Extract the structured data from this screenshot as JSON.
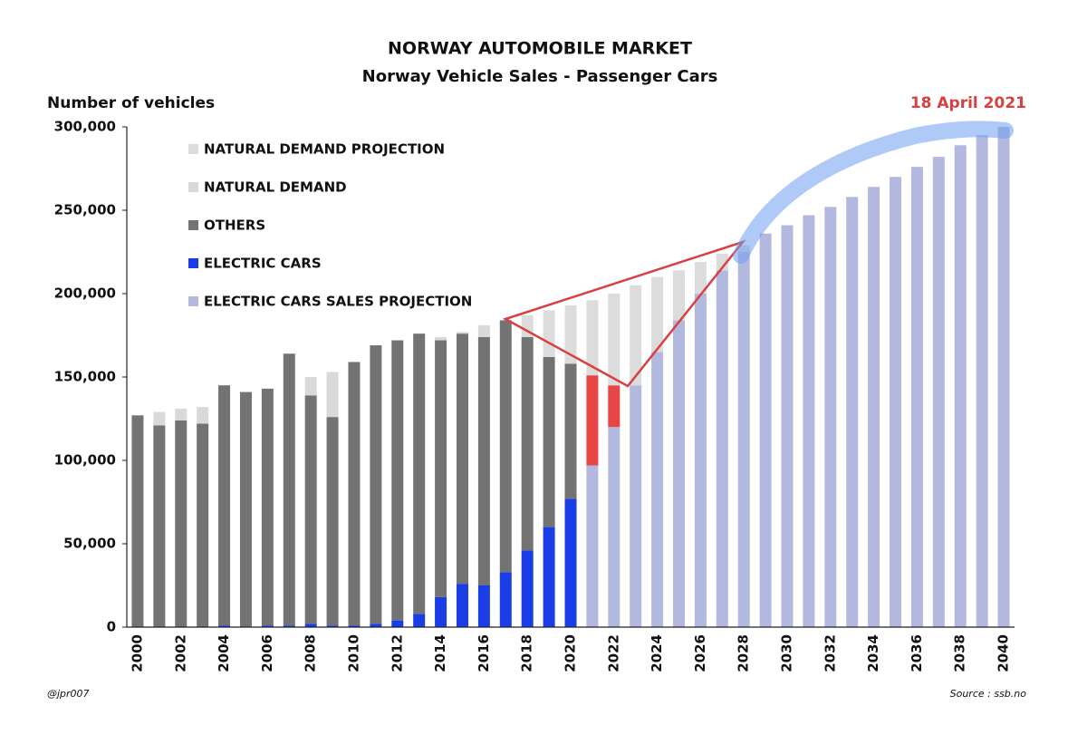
{
  "chart_data": {
    "type": "stacked_bar",
    "title": "NORWAY AUTOMOBILE MARKET",
    "subtitle": "Norway Vehicle Sales - Passenger Cars",
    "y_label": "Number of vehicles",
    "date_note": "18 April 2021",
    "author": "@jpr007",
    "source": "Source : ssb.no",
    "categories": [
      "2000",
      null,
      "2002",
      null,
      "2004",
      null,
      "2006",
      null,
      "2008",
      null,
      "2010",
      null,
      "2012",
      null,
      "2014",
      null,
      "2016",
      null,
      "2018",
      null,
      "2020",
      null,
      "2022",
      null,
      "2024",
      null,
      "2026",
      null,
      "2028",
      null,
      "2030",
      null,
      "2032",
      null,
      "2034",
      null,
      "2036",
      null,
      "2038",
      null,
      "2040"
    ],
    "ylim": [
      0,
      300000
    ],
    "yticks": [
      0,
      {
        "value": 50000,
        "label": "50,000"
      },
      {
        "value": 100000,
        "label": "100,000"
      },
      {
        "value": 150000,
        "label": "150,000"
      },
      {
        "value": 200000,
        "label": "200,000"
      },
      {
        "value": 250000,
        "label": "250,000"
      },
      {
        "value": 300000,
        "label": "300,000"
      }
    ],
    "series": [
      {
        "name": "ELECTRIC CARS",
        "color": "#1a3de8",
        "values": [
          0,
          0,
          0,
          0,
          1000,
          0,
          1000,
          1000,
          2000,
          1000,
          1000,
          2000,
          4000,
          8000,
          18000,
          26000,
          25000,
          33000,
          46000,
          60000,
          77000,
          0,
          0,
          0,
          0,
          0,
          0,
          0,
          0,
          0,
          0,
          0,
          0,
          0,
          0,
          0,
          0,
          0,
          0,
          0,
          0
        ]
      },
      {
        "name": "OTHERS",
        "color": "#737373",
        "values": [
          127000,
          121000,
          124000,
          122000,
          144000,
          141000,
          142000,
          163000,
          137000,
          125000,
          158000,
          167000,
          168000,
          168000,
          154000,
          150000,
          149000,
          151000,
          128000,
          102000,
          81000,
          0,
          0,
          0,
          0,
          0,
          0,
          0,
          0,
          0,
          0,
          0,
          0,
          0,
          0,
          0,
          0,
          0,
          0,
          0,
          0
        ]
      },
      {
        "name": "ELECTRIC CARS SALES PROJECTION",
        "color": "#b3b8de",
        "values": [
          0,
          0,
          0,
          0,
          0,
          0,
          0,
          0,
          0,
          0,
          0,
          0,
          0,
          0,
          0,
          0,
          0,
          0,
          0,
          0,
          0,
          97000,
          120000,
          145000,
          165000,
          184000,
          200000,
          214000,
          225000,
          236000,
          241000,
          247000,
          252000,
          258000,
          264000,
          270000,
          276000,
          282000,
          289000,
          295000,
          300000
        ]
      },
      {
        "color": "#e84545",
        "values": [
          0,
          0,
          0,
          0,
          0,
          0,
          0,
          0,
          0,
          0,
          0,
          0,
          0,
          0,
          0,
          0,
          0,
          0,
          0,
          0,
          0,
          54000,
          25000,
          0,
          0,
          0,
          0,
          0,
          0,
          0,
          0,
          0,
          0,
          0,
          0,
          0,
          0,
          0,
          0,
          0,
          0
        ]
      },
      {
        "name": "NATURAL DEMAND",
        "color": "#d9d9d9",
        "values": [
          0,
          8000,
          7000,
          10000,
          0,
          0,
          0,
          0,
          11000,
          27000,
          0,
          0,
          0,
          0,
          2000,
          1000,
          7000,
          0,
          0,
          0,
          0,
          0,
          0,
          0,
          0,
          0,
          0,
          0,
          0,
          0,
          0,
          0,
          0,
          0,
          0,
          0,
          0,
          0,
          0,
          0,
          0
        ]
      },
      {
        "name": "NATURAL DEMAND PROJECTION",
        "color": "#dcdcdc",
        "values": [
          0,
          0,
          0,
          0,
          0,
          0,
          0,
          0,
          0,
          0,
          0,
          0,
          0,
          0,
          0,
          0,
          0,
          0,
          13000,
          28000,
          35000,
          45000,
          55000,
          60000,
          45000,
          30000,
          19000,
          10000,
          4000,
          0,
          0,
          0,
          0,
          0,
          0,
          0,
          0,
          0,
          0,
          0,
          0
        ]
      }
    ]
  }
}
